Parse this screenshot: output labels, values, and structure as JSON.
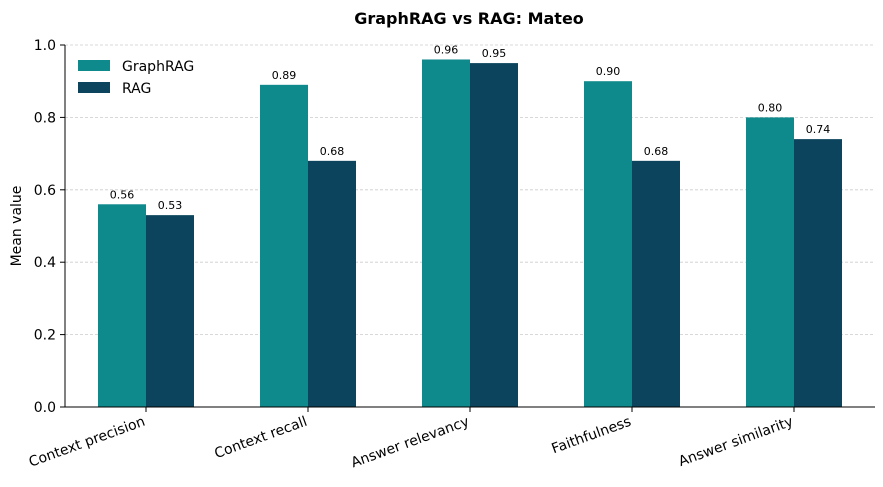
{
  "chart_data": {
    "type": "bar",
    "title": "GraphRAG vs RAG: Mateo",
    "xlabel": "",
    "ylabel": "Mean value",
    "ylim": [
      0,
      1.0
    ],
    "yticks": [
      "0.0",
      "0.2",
      "0.4",
      "0.6",
      "0.8",
      "1.0"
    ],
    "categories": [
      "Context precision",
      "Context recall",
      "Answer relevancy",
      "Faithfulness",
      "Answer similarity"
    ],
    "series": [
      {
        "name": "GraphRAG",
        "color": "#0f8a8c",
        "values": [
          0.56,
          0.89,
          0.96,
          0.9,
          0.8
        ],
        "labels": [
          "0.56",
          "0.89",
          "0.96",
          "0.90",
          "0.80"
        ]
      },
      {
        "name": "RAG",
        "color": "#0b445c",
        "values": [
          0.53,
          0.68,
          0.95,
          0.68,
          0.74
        ],
        "labels": [
          "0.53",
          "0.68",
          "0.95",
          "0.68",
          "0.74"
        ]
      }
    ],
    "grid": "horizontal dashed",
    "legend_position": "top-left"
  }
}
